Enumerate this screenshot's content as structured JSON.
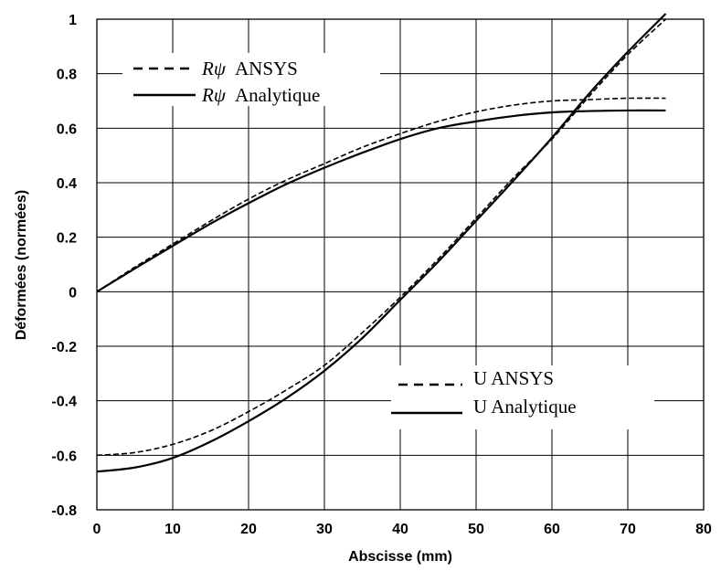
{
  "chart_data": {
    "type": "line",
    "title": "",
    "xlabel": "Abscisse (mm)",
    "ylabel": "Déformées (normées)",
    "xlim": [
      0,
      80
    ],
    "ylim": [
      -0.8,
      1
    ],
    "x_ticks": [
      "0",
      "10",
      "20",
      "30",
      "40",
      "50",
      "60",
      "70",
      "80"
    ],
    "y_ticks": [
      "1",
      "0.8",
      "0.6",
      "0.4",
      "0.2",
      "0",
      "-0.2",
      "-0.4",
      "-0.6",
      "-0.8"
    ],
    "grid": true,
    "legends": [
      {
        "placement": "top-left",
        "entries": [
          {
            "symbol": "Rψ",
            "text": "ANSYS",
            "style": "dashed"
          },
          {
            "symbol": "Rψ",
            "text": "Analytique",
            "style": "solid"
          }
        ]
      },
      {
        "placement": "bottom-center",
        "entries": [
          {
            "symbol": "",
            "text": "U ANSYS",
            "style": "dashed"
          },
          {
            "symbol": "",
            "text": "U Analytique",
            "style": "solid"
          }
        ]
      }
    ],
    "series": [
      {
        "name": "Rψ ANSYS",
        "style": "dashed",
        "x": [
          0,
          5,
          10,
          15,
          20,
          25,
          30,
          35,
          40,
          45,
          50,
          55,
          60,
          65,
          70,
          75
        ],
        "values": [
          0,
          0.09,
          0.175,
          0.26,
          0.34,
          0.41,
          0.47,
          0.53,
          0.58,
          0.625,
          0.66,
          0.685,
          0.7,
          0.705,
          0.71,
          0.71
        ]
      },
      {
        "name": "Rψ Analytique",
        "style": "solid",
        "x": [
          0,
          5,
          10,
          15,
          20,
          25,
          30,
          35,
          40,
          45,
          50,
          55,
          60,
          65,
          70,
          75
        ],
        "values": [
          0,
          0.085,
          0.168,
          0.25,
          0.325,
          0.395,
          0.455,
          0.51,
          0.56,
          0.6,
          0.625,
          0.645,
          0.658,
          0.663,
          0.665,
          0.665
        ]
      },
      {
        "name": "U ANSYS",
        "style": "dashed",
        "x": [
          0,
          5,
          10,
          15,
          20,
          25,
          30,
          35,
          40,
          45,
          50,
          55,
          60,
          65,
          70,
          75
        ],
        "values": [
          -0.6,
          -0.59,
          -0.56,
          -0.51,
          -0.44,
          -0.36,
          -0.27,
          -0.15,
          -0.02,
          0.12,
          0.27,
          0.42,
          0.56,
          0.72,
          0.87,
          1.0
        ]
      },
      {
        "name": "U Analytique",
        "style": "solid",
        "x": [
          0,
          5,
          10,
          15,
          20,
          25,
          30,
          35,
          40,
          45,
          50,
          55,
          60,
          65,
          70,
          75
        ],
        "values": [
          -0.66,
          -0.645,
          -0.61,
          -0.55,
          -0.475,
          -0.39,
          -0.29,
          -0.17,
          -0.03,
          0.11,
          0.26,
          0.41,
          0.565,
          0.73,
          0.88,
          1.02
        ]
      }
    ]
  }
}
